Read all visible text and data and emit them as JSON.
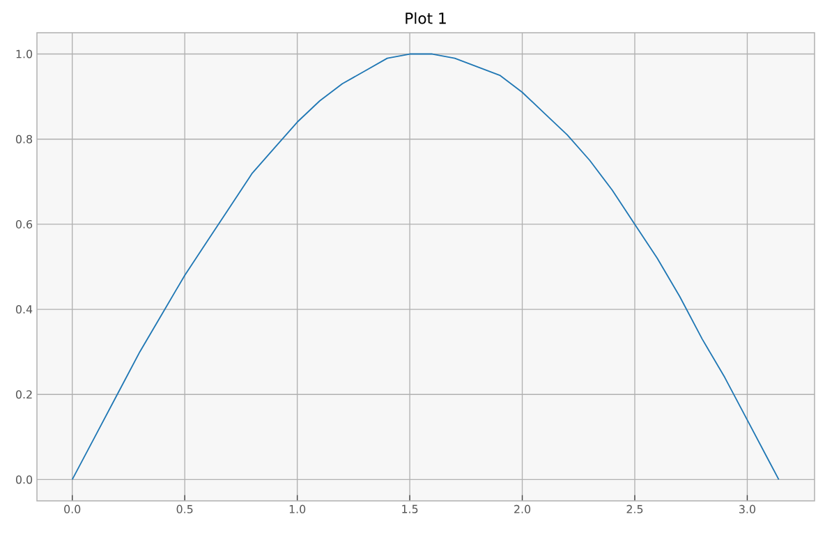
{
  "chart_data": {
    "type": "line",
    "title": "Plot 1",
    "x": [
      0,
      0.1,
      0.2,
      0.3,
      0.4,
      0.5,
      0.6,
      0.7,
      0.8,
      0.9,
      1.0,
      1.1,
      1.2,
      1.3,
      1.4,
      1.5,
      1.6,
      1.7,
      1.8,
      1.9,
      2.0,
      2.1,
      2.2,
      2.3,
      2.4,
      2.5,
      2.6,
      2.7,
      2.8,
      2.9,
      3.0,
      3.1,
      3.14
    ],
    "series": [
      {
        "color": "#1f77b4",
        "values": [
          0,
          0.1,
          0.2,
          0.3,
          0.39,
          0.48,
          0.56,
          0.64,
          0.72,
          0.78,
          0.84,
          0.89,
          0.93,
          0.96,
          0.99,
          1.0,
          1.0,
          0.99,
          0.97,
          0.95,
          0.91,
          0.86,
          0.81,
          0.75,
          0.68,
          0.6,
          0.52,
          0.43,
          0.33,
          0.24,
          0.14,
          0.04,
          0
        ]
      }
    ],
    "xlim": [
      -0.157,
      3.299
    ],
    "ylim": [
      -0.05,
      1.05
    ],
    "xticks": [
      {
        "value": 0,
        "label": "0.0"
      },
      0.5,
      {
        "value": 1,
        "label": "1.0"
      },
      1.5,
      {
        "value": 2,
        "label": "2.0"
      },
      2.5,
      {
        "value": 3,
        "label": "3.0"
      }
    ],
    "yticks": [
      {
        "value": 0,
        "label": "0.0"
      },
      0.2,
      0.4,
      0.6,
      0.8,
      {
        "value": 1,
        "label": "1.0"
      }
    ],
    "grid": true,
    "marker": "none",
    "line_style": "solid"
  }
}
